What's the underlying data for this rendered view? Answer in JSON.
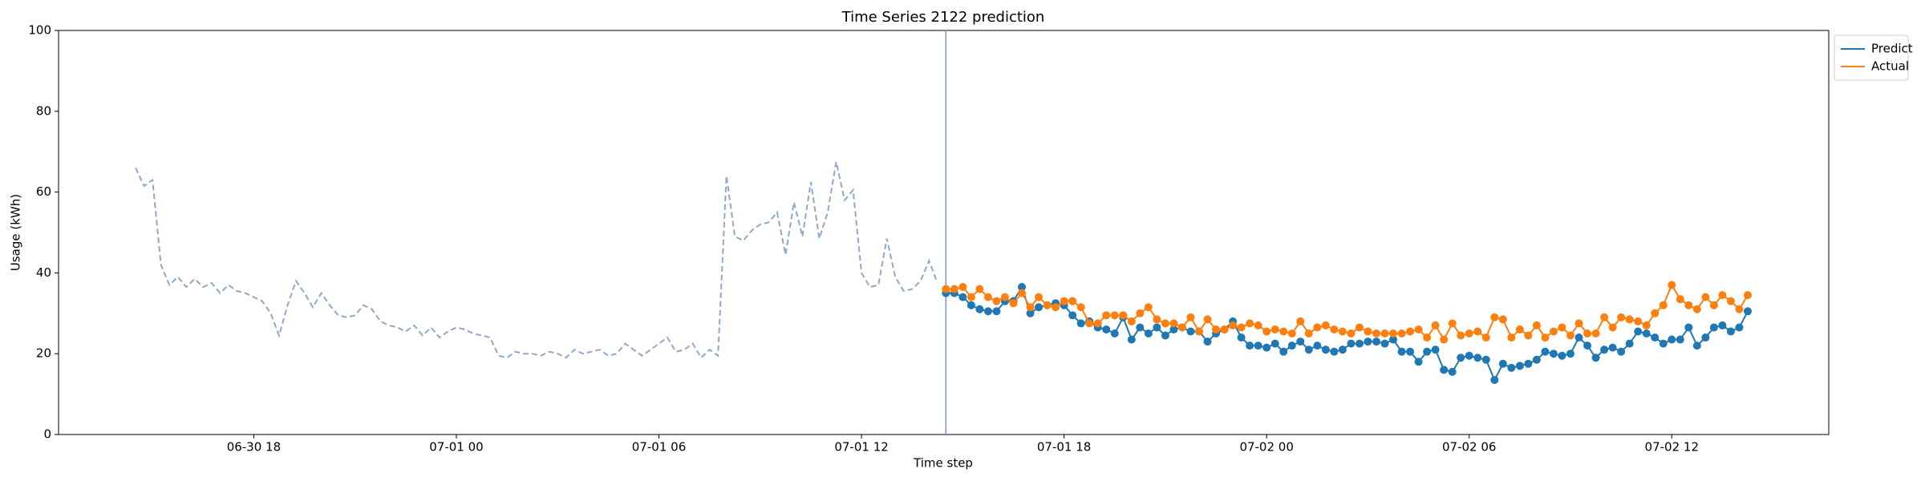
{
  "chart_data": {
    "type": "line",
    "title": "Time Series 2122 prediction",
    "xlabel": "Time step",
    "ylabel": "Usage (kWh)",
    "xlim": [
      "06-30 12:13",
      "07-02 16:39"
    ],
    "xticks": [
      "06-30 18",
      "07-01 00",
      "07-01 06",
      "07-01 12",
      "07-01 18",
      "07-02 00",
      "07-02 06",
      "07-02 12"
    ],
    "ylim": [
      0,
      100
    ],
    "yticks": [
      0,
      20,
      40,
      60,
      80,
      100
    ],
    "vline": {
      "x": "07-01 14:30",
      "color": "#7b93c6"
    },
    "legend": "outside upper right",
    "history": {
      "color": "#8fa8c8",
      "dashed": true,
      "x": [
        "06-30 14:30",
        "06-30 14:45",
        "06-30 15:00",
        "06-30 15:15",
        "06-30 15:30",
        "06-30 15:45",
        "06-30 16:00",
        "06-30 16:15",
        "06-30 16:30",
        "06-30 16:45",
        "06-30 17:00",
        "06-30 17:15",
        "06-30 17:30",
        "06-30 17:45",
        "06-30 18:00",
        "06-30 18:15",
        "06-30 18:30",
        "06-30 18:45",
        "06-30 19:00",
        "06-30 19:15",
        "06-30 19:30",
        "06-30 19:45",
        "06-30 20:00",
        "06-30 20:15",
        "06-30 20:30",
        "06-30 20:45",
        "06-30 21:00",
        "06-30 21:15",
        "06-30 21:30",
        "06-30 21:45",
        "06-30 22:00",
        "06-30 22:15",
        "06-30 22:30",
        "06-30 22:45",
        "06-30 23:00",
        "06-30 23:15",
        "06-30 23:30",
        "06-30 23:45",
        "07-01 00:00",
        "07-01 00:15",
        "07-01 00:30",
        "07-01 00:45",
        "07-01 01:00",
        "07-01 01:15",
        "07-01 01:30",
        "07-01 01:45",
        "07-01 02:00",
        "07-01 02:15",
        "07-01 02:30",
        "07-01 02:45",
        "07-01 03:00",
        "07-01 03:15",
        "07-01 03:30",
        "07-01 03:45",
        "07-01 04:00",
        "07-01 04:15",
        "07-01 04:30",
        "07-01 04:45",
        "07-01 05:00",
        "07-01 05:15",
        "07-01 05:30",
        "07-01 05:45",
        "07-01 06:00",
        "07-01 06:15",
        "07-01 06:30",
        "07-01 06:45",
        "07-01 07:00",
        "07-01 07:15",
        "07-01 07:30",
        "07-01 07:45",
        "07-01 08:00",
        "07-01 08:15",
        "07-01 08:30",
        "07-01 08:45",
        "07-01 09:00",
        "07-01 09:15",
        "07-01 09:30",
        "07-01 09:45",
        "07-01 10:00",
        "07-01 10:15",
        "07-01 10:30",
        "07-01 10:45",
        "07-01 11:00",
        "07-01 11:15",
        "07-01 11:30",
        "07-01 11:45",
        "07-01 12:00",
        "07-01 12:15",
        "07-01 12:30",
        "07-01 12:45",
        "07-01 13:00",
        "07-01 13:15",
        "07-01 13:30",
        "07-01 13:45",
        "07-01 14:00",
        "07-01 14:15"
      ],
      "values": [
        66,
        61.5,
        63,
        42,
        37,
        39,
        36.5,
        38.5,
        36.5,
        37.5,
        35,
        37,
        35.5,
        35,
        34,
        33,
        30,
        24.5,
        32,
        38,
        35,
        31.5,
        35,
        32,
        29.5,
        29,
        29.5,
        32,
        31,
        28,
        27,
        26.5,
        25.5,
        27,
        24.5,
        26.5,
        24,
        25.5,
        26.5,
        26,
        25,
        24.5,
        24,
        19.5,
        19,
        20.5,
        20,
        20,
        19.5,
        20.5,
        20,
        19,
        21,
        20,
        20.5,
        21,
        19.5,
        20,
        22.5,
        21,
        19.5,
        21,
        22.5,
        24,
        20.5,
        21,
        22.5,
        19,
        21,
        19.5,
        64,
        49,
        48,
        50.5,
        52,
        52.5,
        55,
        44.5,
        57.5,
        49,
        62.5,
        48.5,
        55,
        67.5,
        58,
        60.5,
        40,
        36.5,
        37,
        48.5,
        39,
        35.5,
        36,
        38,
        43,
        37.5
      ]
    },
    "x": [
      "07-01 14:30",
      "07-01 14:45",
      "07-01 15:00",
      "07-01 15:15",
      "07-01 15:30",
      "07-01 15:45",
      "07-01 16:00",
      "07-01 16:15",
      "07-01 16:30",
      "07-01 16:45",
      "07-01 17:00",
      "07-01 17:15",
      "07-01 17:30",
      "07-01 17:45",
      "07-01 18:00",
      "07-01 18:15",
      "07-01 18:30",
      "07-01 18:45",
      "07-01 19:00",
      "07-01 19:15",
      "07-01 19:30",
      "07-01 19:45",
      "07-01 20:00",
      "07-01 20:15",
      "07-01 20:30",
      "07-01 20:45",
      "07-01 21:00",
      "07-01 21:15",
      "07-01 21:30",
      "07-01 21:45",
      "07-01 22:00",
      "07-01 22:15",
      "07-01 22:30",
      "07-01 22:45",
      "07-01 23:00",
      "07-01 23:15",
      "07-01 23:30",
      "07-01 23:45",
      "07-02 00:00",
      "07-02 00:15",
      "07-02 00:30",
      "07-02 00:45",
      "07-02 01:00",
      "07-02 01:15",
      "07-02 01:30",
      "07-02 01:45",
      "07-02 02:00",
      "07-02 02:15",
      "07-02 02:30",
      "07-02 02:45",
      "07-02 03:00",
      "07-02 03:15",
      "07-02 03:30",
      "07-02 03:45",
      "07-02 04:00",
      "07-02 04:15",
      "07-02 04:30",
      "07-02 04:45",
      "07-02 05:00",
      "07-02 05:15",
      "07-02 05:30",
      "07-02 05:45",
      "07-02 06:00",
      "07-02 06:15",
      "07-02 06:30",
      "07-02 06:45",
      "07-02 07:00",
      "07-02 07:15",
      "07-02 07:30",
      "07-02 07:45",
      "07-02 08:00",
      "07-02 08:15",
      "07-02 08:30",
      "07-02 08:45",
      "07-02 09:00",
      "07-02 09:15",
      "07-02 09:30",
      "07-02 09:45",
      "07-02 10:00",
      "07-02 10:15",
      "07-02 10:30",
      "07-02 10:45",
      "07-02 11:00",
      "07-02 11:15",
      "07-02 11:30",
      "07-02 11:45",
      "07-02 12:00",
      "07-02 12:15",
      "07-02 12:30",
      "07-02 12:45",
      "07-02 13:00",
      "07-02 13:15",
      "07-02 13:30",
      "07-02 13:45",
      "07-02 14:00",
      "07-02 14:15"
    ],
    "series": [
      {
        "name": "Predict",
        "color": "#1f77b4",
        "values": [
          35,
          35,
          34,
          32,
          31,
          30.5,
          30.5,
          33,
          33,
          36.5,
          30,
          31.5,
          32,
          32.5,
          32,
          29.5,
          27.5,
          28,
          26.5,
          26,
          25,
          29,
          23.5,
          26.5,
          25,
          26.5,
          24.5,
          26,
          26.5,
          25.5,
          25.5,
          23,
          25,
          26,
          28,
          24,
          22,
          22,
          21.5,
          22.5,
          20.5,
          22,
          23,
          21,
          22,
          21,
          20.5,
          21,
          22.5,
          22.5,
          23,
          23,
          22.5,
          23.5,
          20.5,
          20.5,
          18,
          20.5,
          21,
          16,
          15.5,
          19,
          19.5,
          19,
          18.5,
          13.5,
          17.5,
          16.5,
          17,
          17.5,
          18.5,
          20.5,
          20,
          19.5,
          20,
          24,
          22,
          19,
          21,
          21.5,
          20.5,
          22.5,
          25.5,
          25,
          24,
          22.5,
          23.5,
          23.5,
          26.5,
          22,
          24,
          26.5,
          27,
          25.5,
          26.5,
          30.5
        ]
      },
      {
        "name": "Actual",
        "color": "#ff7f0e",
        "values": [
          36,
          36,
          36.5,
          34,
          36,
          34,
          33,
          34,
          32.5,
          35,
          31.5,
          34,
          32,
          31.5,
          33,
          33,
          31.5,
          27.5,
          27.5,
          29.5,
          29.5,
          29.5,
          28,
          30,
          31.5,
          28.5,
          27.5,
          27.5,
          26.5,
          29,
          25.5,
          28.5,
          26,
          26,
          27,
          26.5,
          27.5,
          27,
          25.5,
          26,
          25.5,
          25,
          28,
          25,
          26.5,
          27,
          26,
          25.5,
          25,
          26.5,
          25.5,
          25,
          25,
          25,
          25,
          25.5,
          26,
          24,
          27,
          23.5,
          27.5,
          24.5,
          25,
          25.5,
          24,
          29,
          28.5,
          24,
          26,
          24.5,
          27,
          24,
          25.5,
          26.5,
          24.5,
          27.5,
          25,
          25,
          29,
          26.5,
          29,
          28.5,
          28,
          27,
          30,
          32,
          37,
          33.5,
          32,
          31,
          34,
          32,
          34.5,
          33,
          31,
          34.5
        ]
      }
    ]
  }
}
